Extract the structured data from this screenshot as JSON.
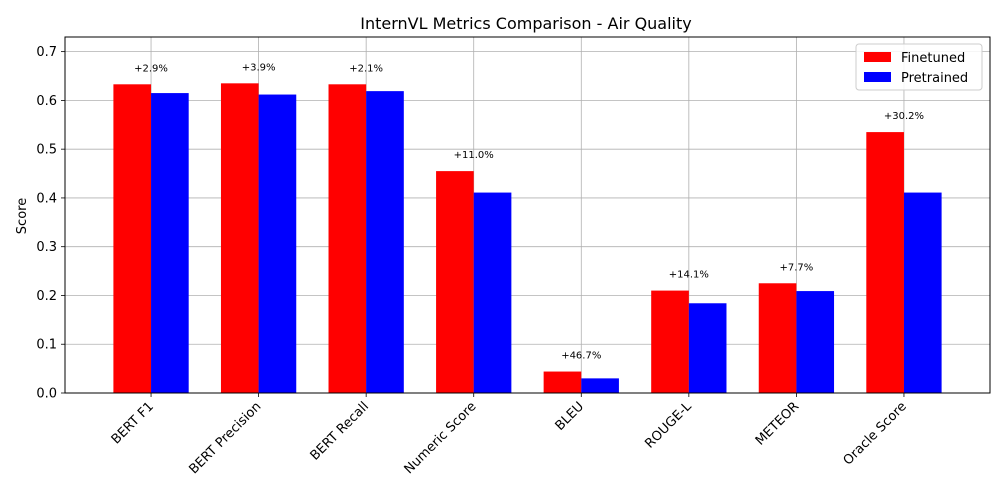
{
  "chart_data": {
    "type": "bar",
    "title": "InternVL Metrics Comparison - Air Quality",
    "xlabel": "",
    "ylabel": "Score",
    "ylim": [
      0,
      0.73
    ],
    "yticks": [
      "0.0",
      "0.1",
      "0.2",
      "0.3",
      "0.4",
      "0.5",
      "0.6",
      "0.7"
    ],
    "grid": true,
    "legend_position": "top-right",
    "categories": [
      "BERT F1",
      "BERT Precision",
      "BERT Recall",
      "Numeric Score",
      "BLEU",
      "ROUGE-L",
      "METEOR",
      "Oracle Score"
    ],
    "series": [
      {
        "name": "Finetuned",
        "color": "#ff0000",
        "values": [
          0.633,
          0.635,
          0.633,
          0.455,
          0.044,
          0.21,
          0.225,
          0.535
        ]
      },
      {
        "name": "Pretrained",
        "color": "#0000ff",
        "values": [
          0.615,
          0.612,
          0.619,
          0.411,
          0.03,
          0.184,
          0.209,
          0.411
        ]
      }
    ],
    "annotations": [
      "+2.9%",
      "+3.9%",
      "+2.1%",
      "+11.0%",
      "+46.7%",
      "+14.1%",
      "+7.7%",
      "+30.2%"
    ]
  }
}
